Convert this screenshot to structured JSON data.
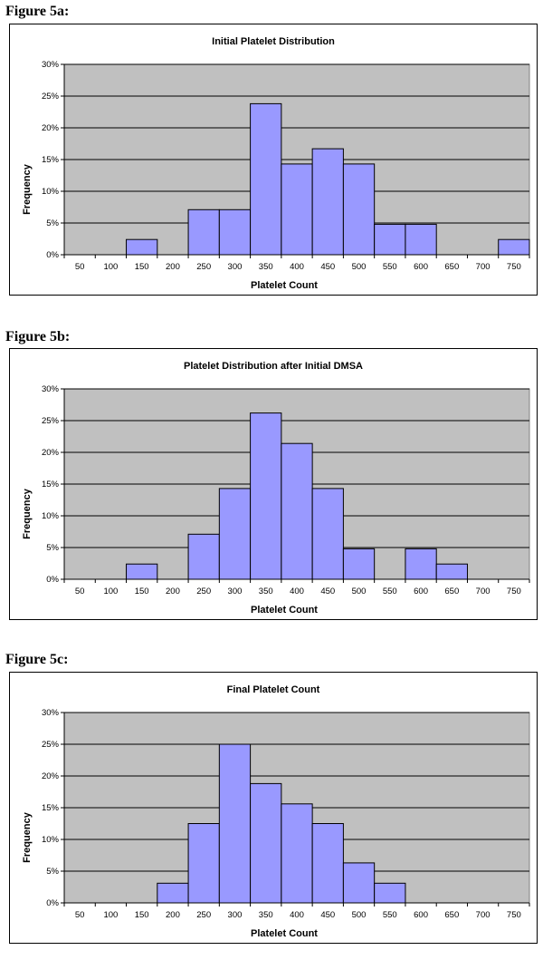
{
  "chart_data": [
    {
      "figure_label": "Figure 5a:",
      "type": "bar",
      "title": "Initial Platelet Distribution",
      "xlabel": "Platelet Count",
      "ylabel": "Frequency",
      "categories": [
        "50",
        "100",
        "150",
        "200",
        "250",
        "300",
        "350",
        "400",
        "450",
        "500",
        "550",
        "600",
        "650",
        "700",
        "750"
      ],
      "values": [
        0,
        0,
        2.4,
        0,
        7.1,
        7.1,
        23.8,
        14.3,
        16.7,
        14.3,
        4.8,
        4.8,
        0,
        0,
        2.4
      ],
      "ylim": [
        0,
        30
      ],
      "yticks": [
        "0%",
        "5%",
        "10%",
        "15%",
        "20%",
        "25%",
        "30%"
      ],
      "grid": true,
      "legend": "none",
      "bar_color": "#9999ff",
      "plot_bg": "#c0c0c0"
    },
    {
      "figure_label": "Figure 5b:",
      "type": "bar",
      "title": "Platelet Distribution after Initial DMSA",
      "xlabel": "Platelet Count",
      "ylabel": "Frequency",
      "categories": [
        "50",
        "100",
        "150",
        "200",
        "250",
        "300",
        "350",
        "400",
        "450",
        "500",
        "550",
        "600",
        "650",
        "700",
        "750"
      ],
      "values": [
        0,
        0,
        2.4,
        0,
        7.1,
        14.3,
        26.2,
        21.4,
        14.3,
        4.8,
        0,
        4.8,
        2.4,
        0,
        0
      ],
      "ylim": [
        0,
        30
      ],
      "yticks": [
        "0%",
        "5%",
        "10%",
        "15%",
        "20%",
        "25%",
        "30%"
      ],
      "grid": true,
      "legend": "none",
      "bar_color": "#9999ff",
      "plot_bg": "#c0c0c0"
    },
    {
      "figure_label": "Figure 5c:",
      "type": "bar",
      "title": "Final Platelet Count",
      "xlabel": "Platelet Count",
      "ylabel": "Frequency",
      "categories": [
        "50",
        "100",
        "150",
        "200",
        "250",
        "300",
        "350",
        "400",
        "450",
        "500",
        "550",
        "600",
        "650",
        "700",
        "750"
      ],
      "values": [
        0,
        0,
        0,
        3.1,
        12.5,
        25.0,
        18.8,
        15.6,
        12.5,
        6.3,
        3.1,
        0,
        0,
        0,
        0
      ],
      "ylim": [
        0,
        30
      ],
      "yticks": [
        "0%",
        "5%",
        "10%",
        "15%",
        "20%",
        "25%",
        "30%"
      ],
      "grid": true,
      "legend": "none",
      "bar_color": "#9999ff",
      "plot_bg": "#c0c0c0"
    }
  ]
}
